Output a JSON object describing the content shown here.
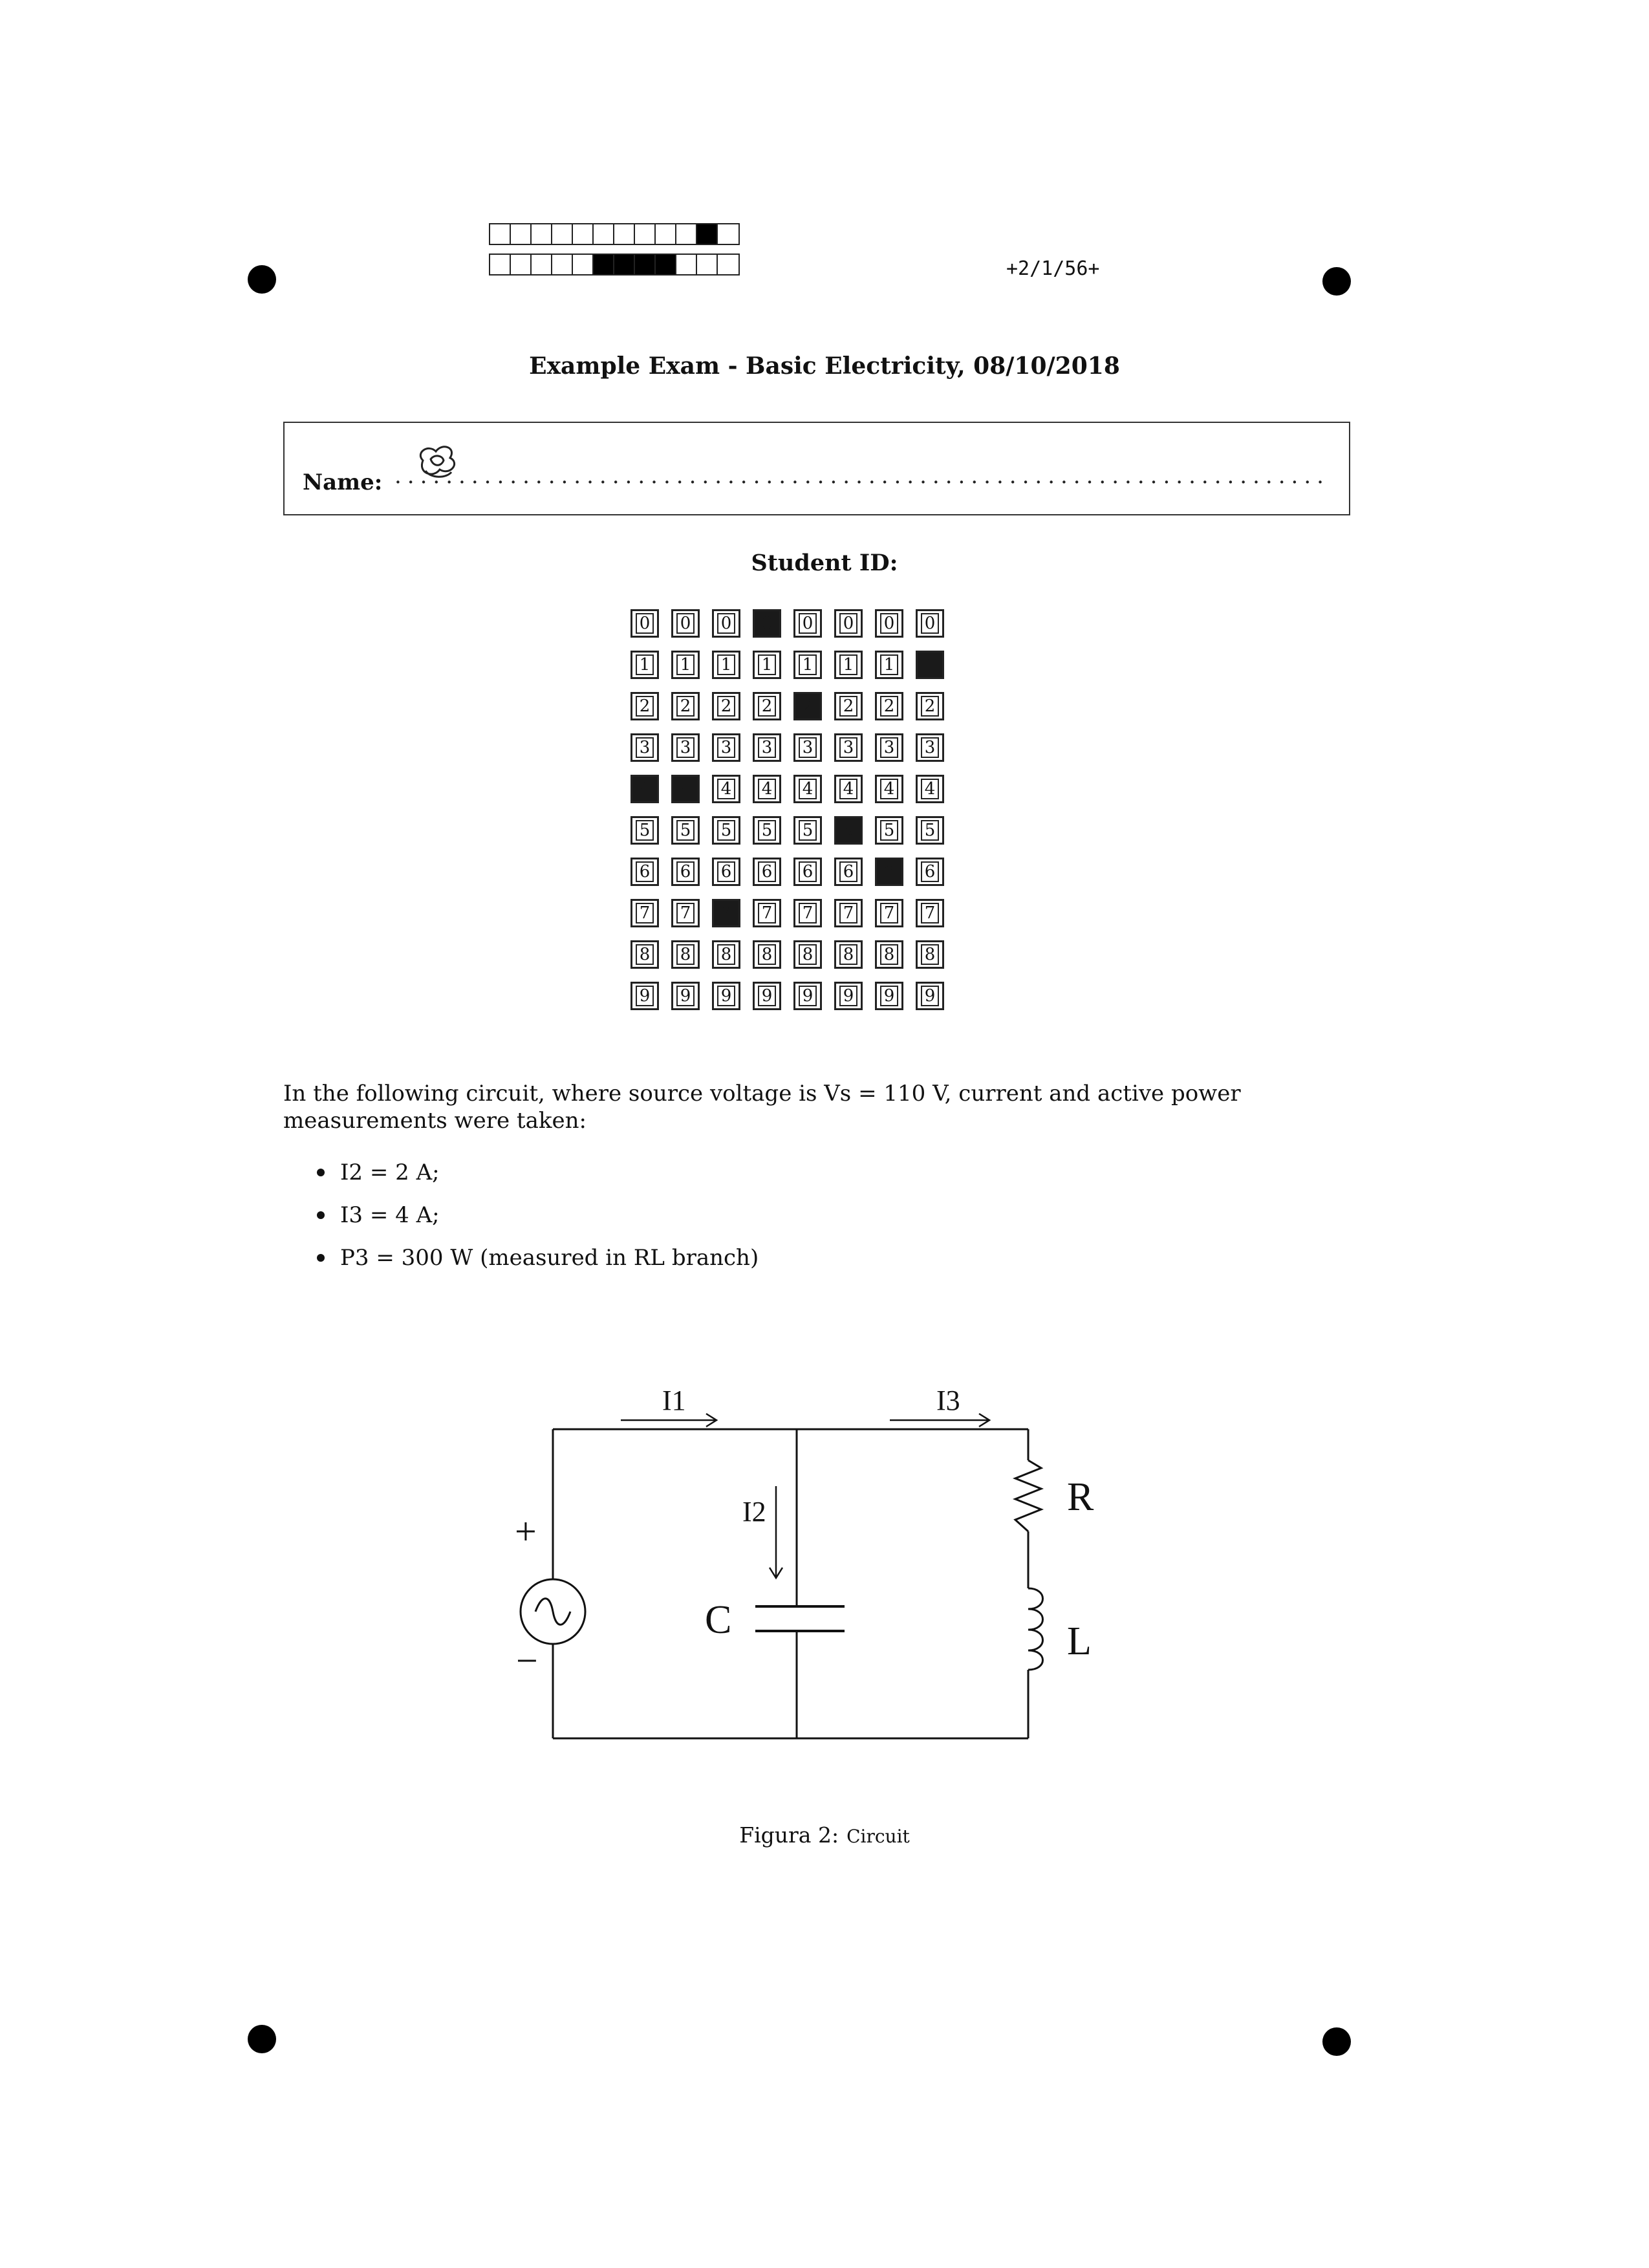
{
  "header": {
    "page_code": "+2/1/56+",
    "top_strip": [
      0,
      0,
      0,
      0,
      0,
      0,
      0,
      0,
      0,
      0,
      1,
      0
    ],
    "bottom_strip": [
      0,
      0,
      0,
      0,
      0,
      1,
      1,
      1,
      1,
      0,
      0,
      0
    ]
  },
  "exam": {
    "title": "Example Exam - Basic Electricity, 08/10/2018"
  },
  "name_field": {
    "label": "Name:",
    "dots": "............................................................................................................"
  },
  "student_id": {
    "label": "Student ID:",
    "digits": [
      "0",
      "1",
      "2",
      "3",
      "4",
      "5",
      "6",
      "7",
      "8",
      "9"
    ],
    "filled_by_column": [
      4,
      4,
      7,
      0,
      2,
      5,
      6,
      1
    ]
  },
  "question": {
    "intro": "In the following circuit, where source voltage is Vs = 110 V, current and active power measurements were taken:",
    "bullets": [
      "I2 = 2 A;",
      "I3 = 4 A;",
      "P3 = 300 W (measured in RL branch)"
    ]
  },
  "circuit": {
    "labels": {
      "i1": "I1",
      "i2": "I2",
      "i3": "I3",
      "plus": "+",
      "minus": "−",
      "capacitor": "C",
      "resistor": "R",
      "inductor": "L"
    }
  },
  "figure": {
    "caption_prefix": "Figura 2:",
    "caption_text": "Circuit"
  }
}
